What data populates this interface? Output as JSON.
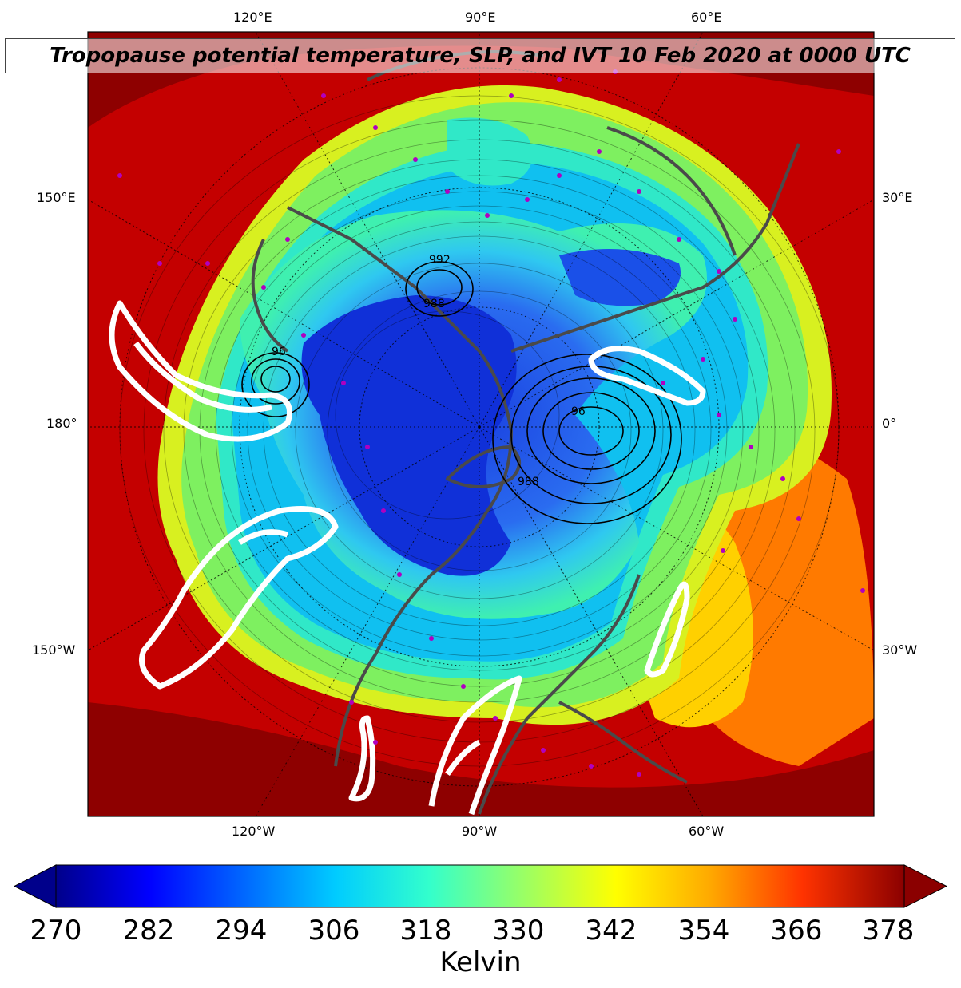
{
  "title": "Tropopause potential temperature, SLP, and IVT 10 Feb 2020 at 0000 UTC",
  "lon_labels_top": [
    "120°E",
    "90°E",
    "60°E"
  ],
  "lon_labels_bottom": [
    "120°W",
    "90°W",
    "60°W"
  ],
  "lat_labels_left": [
    "150°E",
    "180°",
    "150°W"
  ],
  "lat_labels_right": [
    "30°E",
    "0°",
    "30°W"
  ],
  "slp_labels": [
    "992",
    "988",
    "96",
    "988",
    "96"
  ],
  "colorbar": {
    "ticks": [
      "270",
      "282",
      "294",
      "306",
      "318",
      "330",
      "342",
      "354",
      "366",
      "378"
    ],
    "label": "Kelvin",
    "colors": [
      "#00008b",
      "#0000ff",
      "#0066ff",
      "#00ccff",
      "#33ffcc",
      "#99ff66",
      "#ffff00",
      "#ffaa00",
      "#ff3300",
      "#8b0000"
    ]
  },
  "colors": {
    "ocean_red": "#c80000",
    "dark_red": "#8b0000",
    "coast": "#4a4a4a",
    "station_marker": "#b000c0",
    "ivt_contour": "#ffffff"
  }
}
